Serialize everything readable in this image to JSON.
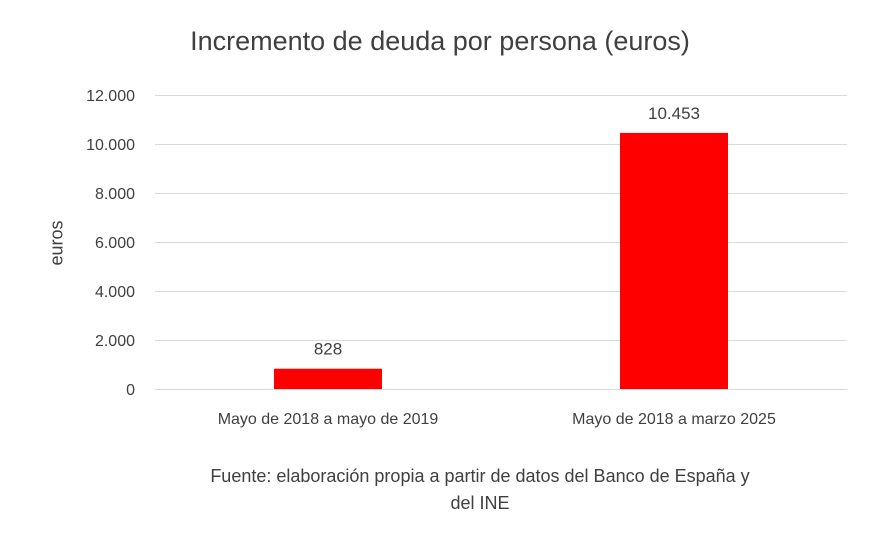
{
  "chart_data": {
    "type": "bar",
    "title": "Incremento de deuda por persona (euros)",
    "xlabel": "",
    "ylabel": "euros",
    "categories": [
      "Mayo de 2018 a mayo de 2019",
      "Mayo de 2018 a marzo 2025"
    ],
    "values": [
      828,
      10453
    ],
    "data_labels": [
      "828",
      "10.453"
    ],
    "ylim": [
      0,
      12000
    ],
    "yticks": [
      0,
      2000,
      4000,
      6000,
      8000,
      10000,
      12000
    ],
    "ytick_labels": [
      "0",
      "2.000",
      "4.000",
      "6.000",
      "8.000",
      "10.000",
      "12.000"
    ],
    "grid": true,
    "legend": "none",
    "bar_color": "#FF0000",
    "grid_color": "#D9D9D9"
  },
  "source_note": {
    "line1": "Fuente: elaboración propia a partir de datos del Banco de España y",
    "line2": "del INE"
  }
}
